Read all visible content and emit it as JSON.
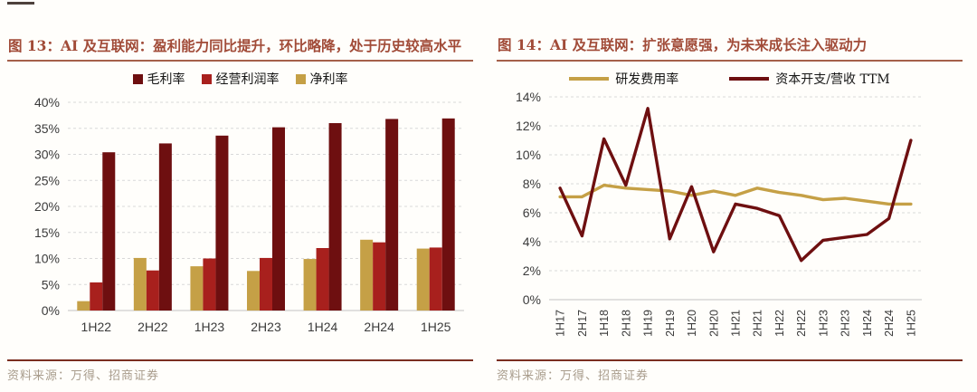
{
  "page": {
    "background": "#fffefb"
  },
  "fig13": {
    "title": "图 13：AI 及互联网：盈利能力同比提升，环比略降，处于历史较高水平",
    "source": "资料来源：万得、招商证券"
  },
  "fig14": {
    "title": "图 14：AI 及互联网：扩张意愿强，为未来成长注入驱动力",
    "source": "资料来源：万得、招商证券"
  },
  "colors": {
    "title_text": "#a14b38",
    "title_underline": "#a5604a",
    "source_line": "#7b2e20",
    "source_text": "#a89c8c",
    "gridline": "#d9d9d9",
    "axis_text": "#3b3b3b",
    "dark_maroon": "#6e0f10",
    "red": "#a8201d",
    "gold": "#c5a046"
  },
  "chart_data": [
    {
      "type": "bar",
      "title": "图 13：AI 及互联网：盈利能力同比提升，环比略降，处于历史较高水平",
      "categories": [
        "1H22",
        "2H22",
        "1H23",
        "2H23",
        "1H24",
        "2H24",
        "1H25"
      ],
      "series": [
        {
          "name": "净利率",
          "color": "#c5a046",
          "values": [
            1.8,
            10.1,
            8.5,
            7.6,
            9.9,
            13.6,
            11.9
          ]
        },
        {
          "name": "经营利润率",
          "color": "#a8201d",
          "values": [
            5.4,
            7.7,
            10.0,
            10.1,
            12.0,
            13.1,
            12.1
          ]
        },
        {
          "name": "毛利率",
          "color": "#6e0f10",
          "values": [
            30.4,
            32.1,
            33.6,
            35.2,
            36.0,
            36.8,
            36.9
          ]
        }
      ],
      "legend_order": [
        "毛利率",
        "经营利润率",
        "净利率"
      ],
      "xlabel": "",
      "ylabel": "",
      "ylim": [
        0,
        40
      ],
      "ytick_step": 5,
      "ytick_format": "%",
      "grid": "horizontal-dashed",
      "legend_position": "top"
    },
    {
      "type": "line",
      "title": "图 14：AI 及互联网：扩张意愿强，为未来成长注入驱动力",
      "categories": [
        "1H17",
        "2H17",
        "1H18",
        "2H18",
        "1H19",
        "2H19",
        "1H20",
        "2H20",
        "1H21",
        "2H21",
        "1H22",
        "2H22",
        "1H23",
        "2H23",
        "1H24",
        "2H24",
        "1H25"
      ],
      "series": [
        {
          "name": "研发费用率",
          "color": "#c5a046",
          "values": [
            7.1,
            7.1,
            7.9,
            7.7,
            7.6,
            7.5,
            7.2,
            7.5,
            7.2,
            7.7,
            7.4,
            7.2,
            6.9,
            7.0,
            6.8,
            6.6,
            6.6
          ]
        },
        {
          "name": "资本开支/营收 TTM",
          "color": "#6e0f10",
          "values": [
            7.7,
            4.4,
            11.1,
            7.9,
            13.2,
            4.2,
            7.8,
            3.3,
            6.6,
            6.3,
            5.8,
            2.7,
            4.1,
            4.3,
            4.5,
            5.6,
            11.0
          ]
        }
      ],
      "xlabel": "",
      "ylabel": "",
      "ylim": [
        0,
        14
      ],
      "ytick_step": 2,
      "ytick_format": "%",
      "grid": "horizontal-dashed",
      "legend_position": "top",
      "xtick_rotation": 90
    }
  ]
}
